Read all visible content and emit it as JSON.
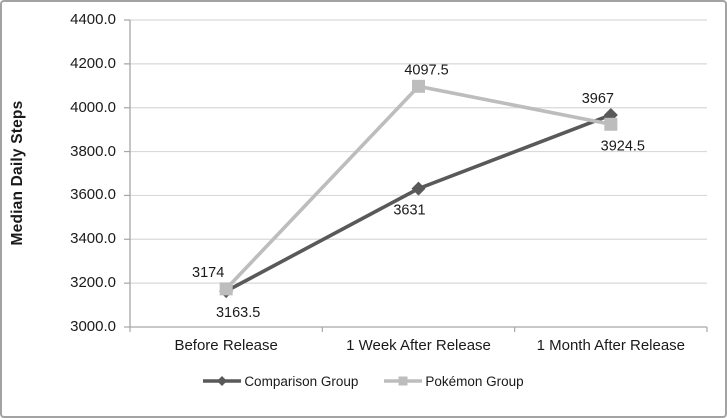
{
  "window": {
    "background": "#ffffff",
    "border_color": "#a3a3a3"
  },
  "chart_data": {
    "type": "line",
    "title": "",
    "ylabel": "Median Daily Steps",
    "xlabel": "",
    "categories": [
      "Before Release",
      "1 Week After Release",
      "1 Month After Release"
    ],
    "y_axis": {
      "min": 3000,
      "max": 4400,
      "step": 200,
      "tick_labels": [
        "4400.0",
        "4200.0",
        "4000.0",
        "3800.0",
        "3600.0",
        "3400.0",
        "3200.0",
        "3000.0"
      ]
    },
    "grid": true,
    "legend_position": "bottom",
    "series": [
      {
        "name": "Comparison Group",
        "marker": "diamond",
        "color": "#595959",
        "values": [
          3163.5,
          3631,
          3967
        ],
        "data_labels": [
          "3163.5",
          "3631",
          "3967"
        ],
        "label_side": [
          "below",
          "below",
          "above"
        ],
        "label_dx": [
          12,
          -9,
          -13
        ]
      },
      {
        "name": "Pokémon Group",
        "marker": "square",
        "color": "#bdbdbd",
        "values": [
          3174,
          4097.5,
          3924.5
        ],
        "data_labels": [
          "3174",
          "4097.5",
          "3924.5"
        ],
        "label_side": [
          "above",
          "above",
          "below"
        ],
        "label_dx": [
          -18,
          8,
          12
        ]
      }
    ],
    "colors": {
      "gridline": "#d9d9d9",
      "axis": "#a6a6a6",
      "text": "#1a1a1a"
    }
  }
}
